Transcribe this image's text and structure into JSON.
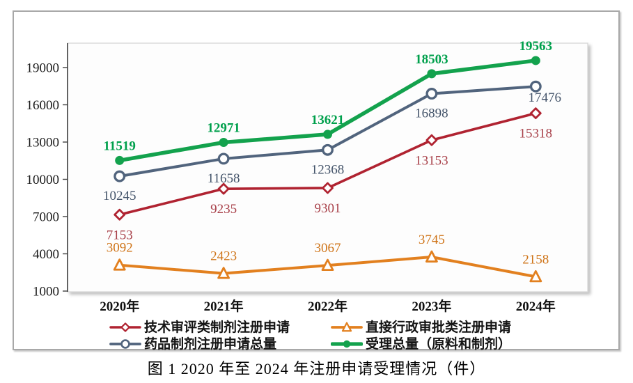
{
  "figure": {
    "caption": "图 1  2020 年至 2024 年注册申请受理情况（件）"
  },
  "chart_data": {
    "type": "line",
    "title": "",
    "xlabel": "",
    "ylabel": "",
    "categories": [
      "2020年",
      "2021年",
      "2022年",
      "2023年",
      "2024年"
    ],
    "y_ticks": [
      1000,
      4000,
      7000,
      10000,
      13000,
      16000,
      19000
    ],
    "ylim": [
      1000,
      21000
    ],
    "grid": false,
    "legend_position": "bottom",
    "series": [
      {
        "name": "技术审评类制剂注册申请",
        "values": [
          7153,
          9235,
          9301,
          13153,
          15318
        ],
        "color": "#b02331",
        "label_color": "#a84049",
        "marker": "diamond-open",
        "line_width": 3.6,
        "label_side": "below",
        "label_gap": 35
      },
      {
        "name": "直接行政审批类注册申请",
        "values": [
          3092,
          2423,
          3067,
          3745,
          2158
        ],
        "color": "#e2801f",
        "label_color": "#cf7418",
        "marker": "triangle-open",
        "line_width": 4,
        "label_side": "above",
        "label_gap": 19
      },
      {
        "name": "药品制剂注册申请总量",
        "values": [
          10245,
          11658,
          12368,
          16898,
          17476
        ],
        "color": "#51647d",
        "label_color": "#44546a",
        "marker": "circle-open",
        "line_width": 4,
        "label_side": "below",
        "label_gap": 34,
        "label_overrides": {
          "4": {
            "dx": 13,
            "gap": 22
          }
        }
      },
      {
        "name": "受理总量（原料和制剂）",
        "values": [
          11519,
          12971,
          13621,
          18503,
          19563
        ],
        "color": "#13a24d",
        "label_color": "#00a04c",
        "marker": "circle-filled",
        "line_width": 5.5,
        "label_side": "above",
        "label_gap": 15,
        "bold_labels": true
      }
    ]
  }
}
